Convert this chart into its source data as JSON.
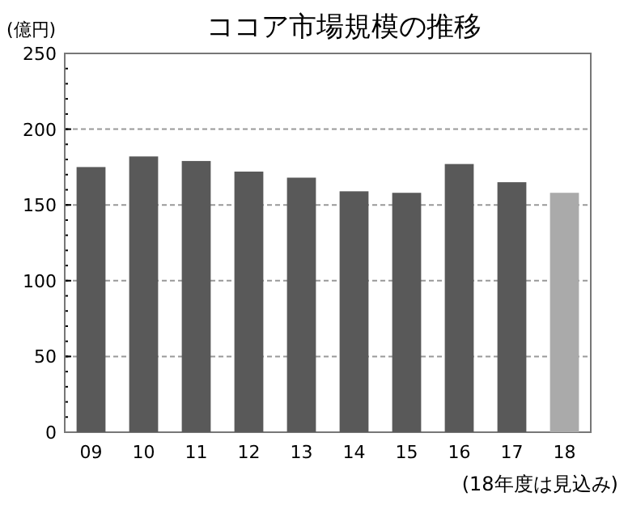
{
  "chart_data": {
    "type": "bar",
    "title": "ココア市場規模の推移",
    "ylabel": "(億円)",
    "categories": [
      "09",
      "10",
      "11",
      "12",
      "13",
      "14",
      "15",
      "16",
      "17",
      "18"
    ],
    "values": [
      175,
      182,
      179,
      172,
      168,
      159,
      158,
      177,
      165,
      158
    ],
    "colors": [
      "#595959",
      "#595959",
      "#595959",
      "#595959",
      "#595959",
      "#595959",
      "#595959",
      "#595959",
      "#595959",
      "#aaaaaa"
    ],
    "ylim": [
      0,
      250
    ],
    "yticks": [
      0,
      50,
      100,
      150,
      200,
      250
    ],
    "grid": "y",
    "annotations": [
      "(18年度は見込み)"
    ]
  }
}
